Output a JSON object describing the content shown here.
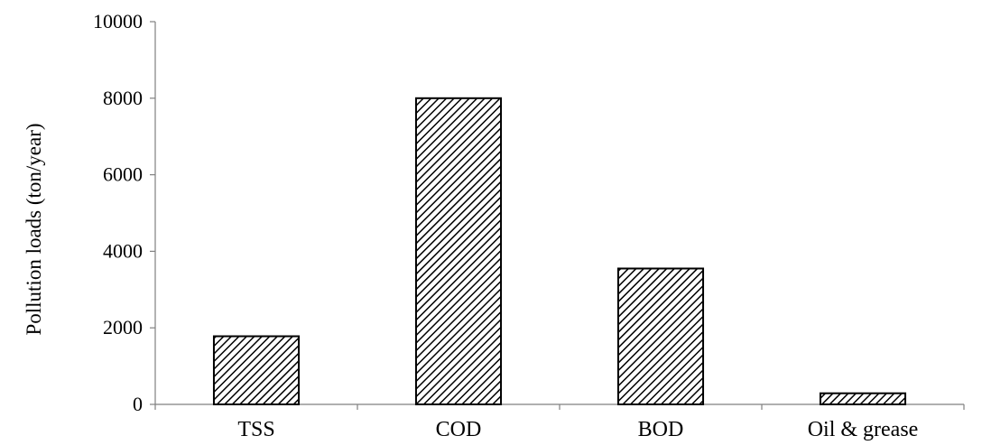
{
  "chart_data": {
    "type": "bar",
    "title": "",
    "xlabel": "",
    "ylabel": "Pollution loads (ton/year)",
    "categories": [
      "TSS",
      "COD",
      "BOD",
      "Oil & grease"
    ],
    "values": [
      1780,
      8000,
      3550,
      290
    ],
    "ylim": [
      0,
      10000
    ],
    "yticks": [
      0,
      2000,
      4000,
      6000,
      8000,
      10000
    ],
    "grid": false,
    "legend": "none",
    "bar_pattern": "diagonal-hatch",
    "colors": {
      "bar_fill": "#ffffff",
      "hatch": "#000000",
      "axis": "#808080",
      "bar_stroke": "#000000"
    }
  }
}
